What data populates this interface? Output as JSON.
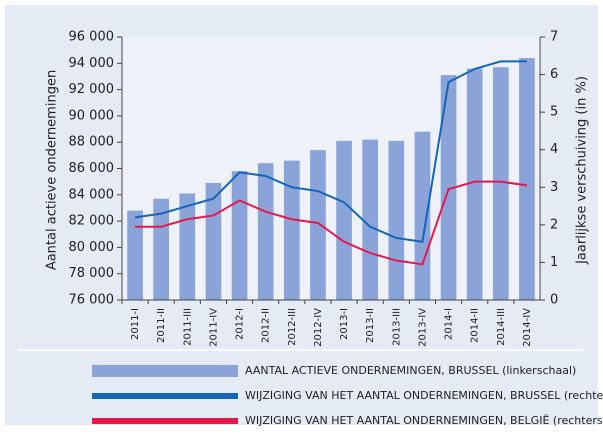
{
  "chart_data": {
    "type": "bar-line",
    "y_label": "Aantal actieve ondernemingen",
    "y2_label": "Jaarlijkse verschuiving (in %)",
    "categories": [
      "2011-I",
      "2011-II",
      "2011-III",
      "2011-IV",
      "2012-I",
      "2012-II",
      "2012-III",
      "2012-IV",
      "2013-I",
      "2013-II",
      "2013-III",
      "2013-IV",
      "2014-I",
      "2014-II",
      "2014-III",
      "2014-IV"
    ],
    "series": [
      {
        "name": "AANTAL ACTIEVE ONDERNEMINGEN, BRUSSEL (linkerschaal)",
        "color": "#8aa3d8",
        "kind": "bar",
        "values": [
          82800,
          83700,
          84100,
          84900,
          85800,
          86400,
          86600,
          87400,
          88100,
          88200,
          88100,
          88800,
          93100,
          93600,
          93700,
          94400
        ]
      },
      {
        "name": "WIJZIGING VAN HET AANTAL ONDERNEMINGEN, BRUSSEL (rechterschaal)",
        "color": "#1565b8",
        "kind": "line",
        "axis": "y2",
        "values": [
          2.2,
          2.3,
          2.5,
          2.7,
          3.4,
          3.3,
          3.0,
          2.9,
          2.6,
          1.95,
          1.65,
          1.55,
          5.8,
          6.15,
          6.35,
          6.35
        ]
      },
      {
        "name": "WIJZIGING VAN HET AANTAL ONDERNEMINGEN, BELGIË (rechterschaal)",
        "color": "#e8174a",
        "kind": "line",
        "axis": "y2",
        "values": [
          1.95,
          1.95,
          2.15,
          2.25,
          2.65,
          2.35,
          2.15,
          2.05,
          1.55,
          1.25,
          1.05,
          0.95,
          2.95,
          3.15,
          3.15,
          3.05
        ]
      }
    ],
    "ylim": [
      76000,
      96000
    ],
    "yticks": [
      {
        "value": 76000,
        "label": "76 000"
      },
      {
        "value": 78000,
        "label": "78 000"
      },
      {
        "value": 80000,
        "label": "80 000"
      },
      {
        "value": 82000,
        "label": "82 000"
      },
      {
        "value": 84000,
        "label": "84 000"
      },
      {
        "value": 86000,
        "label": "86 000"
      },
      {
        "value": 88000,
        "label": "88 000"
      },
      {
        "value": 90000,
        "label": "90 000"
      },
      {
        "value": 92000,
        "label": "92 000"
      },
      {
        "value": 94000,
        "label": "94 000"
      },
      {
        "value": 96000,
        "label": "96 000"
      }
    ],
    "y2lim": [
      0,
      7
    ],
    "y2ticks": [
      0,
      1,
      2,
      3,
      4,
      5,
      6,
      7
    ]
  }
}
